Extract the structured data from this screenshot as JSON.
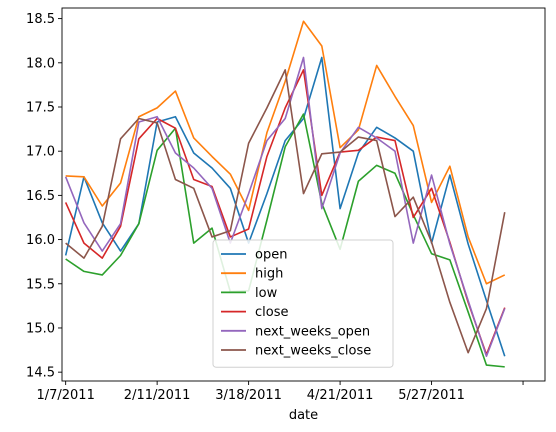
{
  "chart_data": {
    "type": "line",
    "xlabel": "date",
    "x_tick_labels": [
      "1/7/2011",
      "2/11/2011",
      "3/18/2011",
      "4/21/2011",
      "5/27/2011",
      ""
    ],
    "x_tick_index": [
      0,
      5,
      10,
      15,
      20,
      25
    ],
    "y_ticks": [
      14.5,
      15.0,
      15.5,
      16.0,
      16.5,
      17.0,
      17.5,
      18.0,
      18.5
    ],
    "y_tick_labels": [
      "14.5",
      "15.0",
      "15.5",
      "16.0",
      "16.5",
      "17.0",
      "17.5",
      "18.0",
      "18.5"
    ],
    "ylim": [
      14.4,
      18.62
    ],
    "xlim": [
      -0.2,
      26.2
    ],
    "legend_position": "lower center",
    "grid": false,
    "series": [
      {
        "name": "open",
        "color": "#1f77b4",
        "values": [
          15.82,
          16.71,
          16.19,
          15.87,
          16.18,
          17.33,
          17.39,
          16.98,
          16.81,
          16.58,
          15.96,
          16.52,
          17.12,
          17.37,
          18.06,
          16.35,
          16.98,
          17.27,
          17.15,
          17.0,
          15.96,
          16.73,
          15.95,
          15.31,
          14.68
        ]
      },
      {
        "name": "high",
        "color": "#ff7f0e",
        "values": [
          16.72,
          16.71,
          16.38,
          16.64,
          17.39,
          17.49,
          17.68,
          17.15,
          16.94,
          16.74,
          16.33,
          17.21,
          17.79,
          18.47,
          18.19,
          17.04,
          17.24,
          17.97,
          17.62,
          17.29,
          16.42,
          16.83,
          16.03,
          15.5,
          15.6
        ]
      },
      {
        "name": "low",
        "color": "#2ca02c",
        "values": [
          15.78,
          15.64,
          15.6,
          15.82,
          16.18,
          17.01,
          17.26,
          15.96,
          16.13,
          15.41,
          15.42,
          16.22,
          17.05,
          17.42,
          16.41,
          15.89,
          16.66,
          16.84,
          16.75,
          16.28,
          15.84,
          15.77,
          15.18,
          14.58,
          14.56
        ]
      },
      {
        "name": "close",
        "color": "#d62728",
        "values": [
          16.42,
          15.96,
          15.79,
          16.15,
          17.14,
          17.37,
          17.26,
          16.68,
          16.6,
          16.03,
          16.12,
          16.94,
          17.49,
          17.92,
          16.5,
          16.99,
          17.01,
          17.16,
          17.12,
          16.25,
          16.58,
          15.97,
          15.29,
          14.7,
          15.23
        ]
      },
      {
        "name": "next_weeks_open",
        "color": "#9467bd",
        "values": [
          16.71,
          16.19,
          15.87,
          16.18,
          17.33,
          17.39,
          16.98,
          16.81,
          16.58,
          15.96,
          16.52,
          17.12,
          17.37,
          18.06,
          16.35,
          16.98,
          17.27,
          17.15,
          17.0,
          15.96,
          16.73,
          15.95,
          15.31,
          14.68,
          15.22
        ]
      },
      {
        "name": "next_weeks_close",
        "color": "#8c564b",
        "values": [
          15.96,
          15.79,
          16.15,
          17.14,
          17.37,
          17.32,
          16.68,
          16.58,
          16.03,
          16.1,
          17.09,
          17.49,
          17.92,
          16.52,
          16.97,
          16.99,
          17.16,
          17.12,
          16.26,
          16.48,
          15.97,
          15.29,
          14.72,
          15.22,
          16.31
        ]
      }
    ]
  }
}
